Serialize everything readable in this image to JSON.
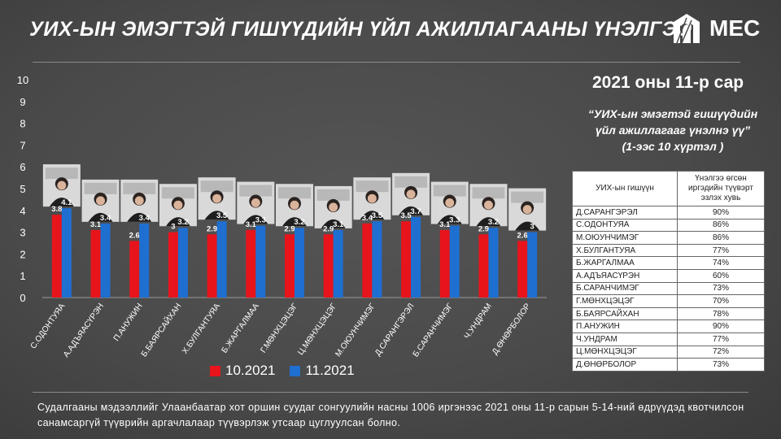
{
  "header": {
    "title": "УИХ-ЫН ЭМЭГТЭЙ ГИШҮҮДИЙН ҮЙЛ АЖИЛЛАГААНЫ ҮНЭЛГЭЭ",
    "logo_text": "MEC"
  },
  "period": "2021 оны 11-р сар",
  "question": {
    "line1": "“УИХ-ын эмэгтэй гишүүдийн",
    "line2": "үйл ажиллагааг үнэлнэ үү”",
    "line3": "(1-ээс 10 хүртэл )"
  },
  "colors": {
    "series_oct": "#e8141c",
    "series_nov": "#1f6fd1"
  },
  "chart_data": {
    "type": "bar",
    "categories": [
      "С.ОДОНТУЯА",
      "А.АДЪЯАСҮРЭН",
      "П.АНУЖИН",
      "Б.БАЯРСАЙХАН",
      "Х.БУЛГАНТУЯА",
      "Б.ЖАРГАЛМАА",
      "Г.МӨНХЦЭЦЭГ",
      "Ц.МӨНХЦЭЦЭГ",
      "М.ОЮУНЧИМЭГ",
      "Д.САРАНГЭРЭЛ",
      "Б.САРАНЧИМЭГ",
      "Ч.УНДРАМ",
      "Д.ӨНӨРБОЛОР"
    ],
    "series": [
      {
        "name": "10.2021",
        "values": [
          3.8,
          3.1,
          2.6,
          3,
          2.9,
          3.1,
          2.9,
          2.9,
          3.4,
          3.5,
          3.1,
          2.9,
          2.6
        ]
      },
      {
        "name": "11.2021",
        "values": [
          4.1,
          3.4,
          3.4,
          3.2,
          3.5,
          3.3,
          3.2,
          3.1,
          3.5,
          3.7,
          3.3,
          3.2,
          3
        ]
      }
    ],
    "ylim": [
      0,
      10
    ],
    "yticks": [
      "0",
      "1",
      "2",
      "3",
      "4",
      "5",
      "6",
      "7",
      "8",
      "9",
      "10"
    ],
    "grid": false,
    "legend_position": "bottom"
  },
  "table": {
    "header_name": "УИХ-ын гишүүн",
    "header_value": "Үнэлгээ өгсөн иргэдийн түүвэрт эзлэх хувь",
    "rows": [
      {
        "name": "Д.САРАНГЭРЭЛ",
        "value": "90%"
      },
      {
        "name": "С.ОДОНТУЯА",
        "value": "86%"
      },
      {
        "name": "М.ОЮУНЧИМЭГ",
        "value": "86%"
      },
      {
        "name": "Х.БУЛГАНТУЯА",
        "value": "77%"
      },
      {
        "name": "Б.ЖАРГАЛМАА",
        "value": "74%"
      },
      {
        "name": "А.АДЪЯАСҮРЭН",
        "value": "60%"
      },
      {
        "name": "Б.САРАНЧИМЭГ",
        "value": "73%"
      },
      {
        "name": "Г.МӨНХЦЭЦЭГ",
        "value": "70%"
      },
      {
        "name": "Б.БАЯРСАЙХАН",
        "value": "78%"
      },
      {
        "name": "П.АНУЖИН",
        "value": "90%"
      },
      {
        "name": "Ч.УНДРАМ",
        "value": "77%"
      },
      {
        "name": "Ц.МӨНХЦЭЦЭГ",
        "value": "72%"
      },
      {
        "name": "Д.ӨНӨРБОЛОР",
        "value": "73%"
      }
    ]
  },
  "footnote": "Судалгааны мэдээллийг Улаанбаатар хот оршин суудаг сонгуулийн насны 1006 иргэнээс 2021 оны 11-р сарын 5-14-ний өдрүүдэд квотчилсон санамсаргүй түүврийн аргачлалаар түүвэрлэж утсаар цуглуулсан болно."
}
